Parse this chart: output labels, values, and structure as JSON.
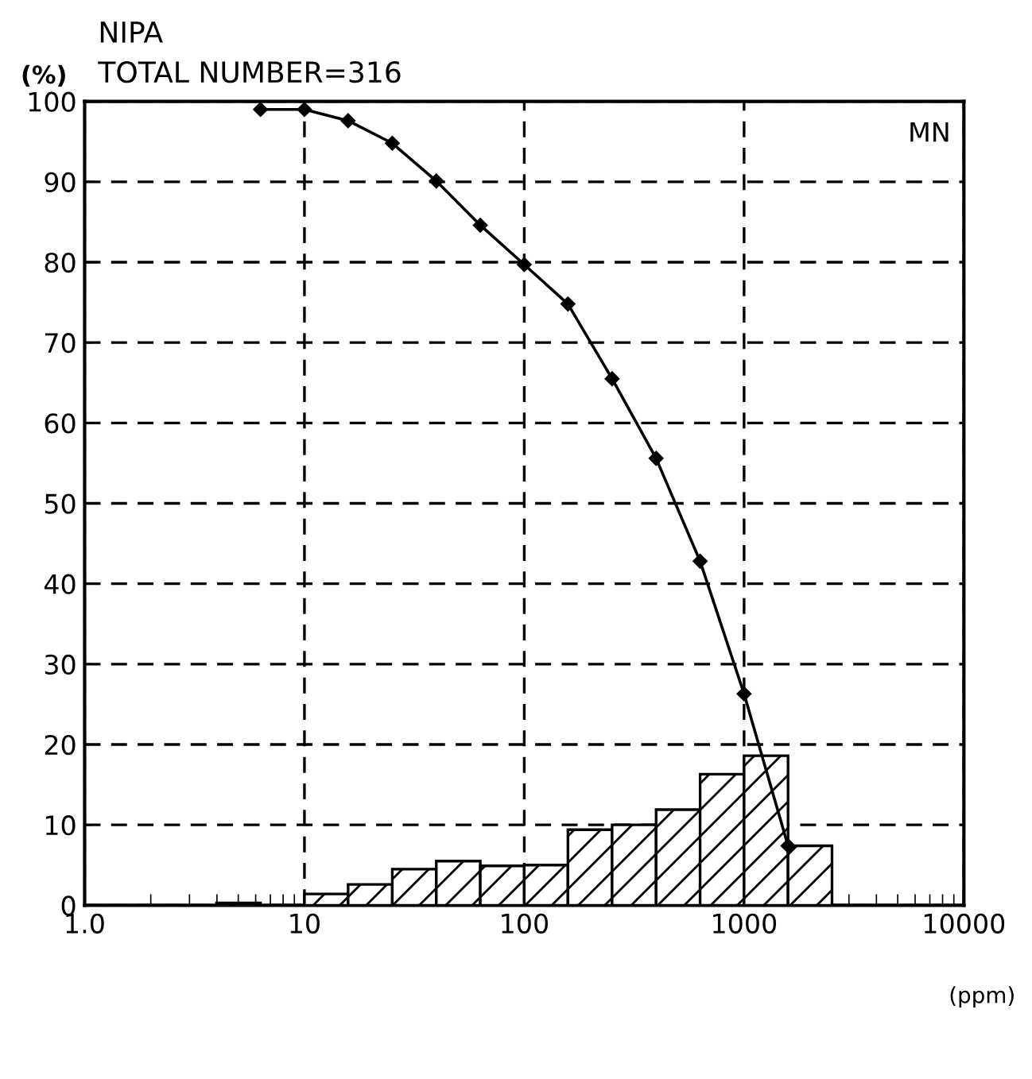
{
  "chart_data": {
    "type": "histogram",
    "title": "NIPA",
    "subtitle": "TOTAL NUMBER=316",
    "ylabel": "(%)",
    "xlabel": "(ppm)",
    "annotations": [
      "MN"
    ],
    "log": "x",
    "bins": [
      3.98,
      6.31,
      10,
      15.8,
      25.1,
      39.8,
      63.1,
      100,
      158,
      251,
      398,
      631,
      1000,
      1585,
      2512
    ],
    "values": [
      0.3,
      0,
      1.4,
      2.6,
      4.5,
      5.5,
      4.9,
      5.0,
      9.4,
      10.0,
      11.9,
      16.3,
      18.6,
      7.4
    ],
    "color": "#000000",
    "series": [
      {
        "type": "line",
        "color": "#000000",
        "marker": "diamond",
        "x": [
          6.31,
          10,
          15.8,
          25.1,
          39.8,
          63.1,
          100,
          158,
          251,
          398,
          631,
          1000,
          1585
        ],
        "values": [
          99.0,
          99.0,
          97.6,
          94.8,
          90.1,
          84.6,
          79.7,
          74.8,
          65.5,
          55.6,
          42.8,
          26.3,
          7.4
        ]
      }
    ],
    "xlim": [
      1,
      10000
    ],
    "xticks": [
      {
        "value": 1,
        "label": "1.0"
      },
      10,
      100,
      1000,
      10000
    ],
    "ylim": [
      0,
      100
    ],
    "yticks": [
      0,
      10,
      20,
      30,
      40,
      50,
      60,
      70,
      80,
      90,
      100
    ],
    "grid": true,
    "line_style": "solid"
  }
}
